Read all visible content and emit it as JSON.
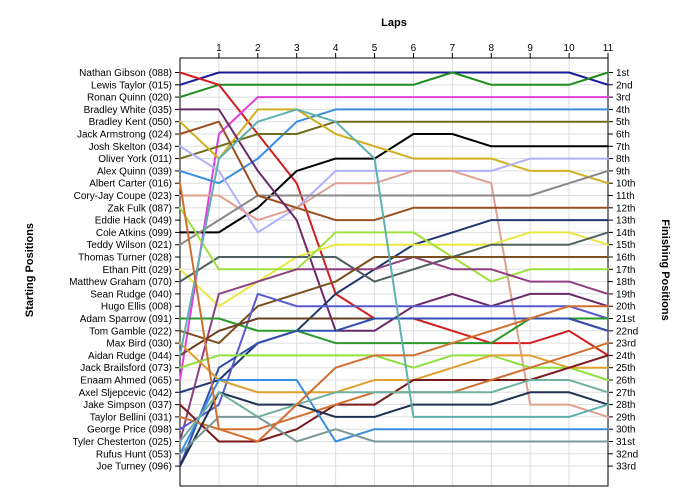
{
  "chart_data": {
    "type": "line",
    "title": "Laps",
    "xlabel": "Laps",
    "ylabel_left": "Starting Positions",
    "ylabel_right": "Finishing Positions",
    "x": [
      0,
      1,
      2,
      3,
      4,
      5,
      6,
      7,
      8,
      9,
      10,
      11
    ],
    "x_tick_labels": [
      "1",
      "2",
      "3",
      "4",
      "5",
      "6",
      "7",
      "8",
      "9",
      "10",
      "11"
    ],
    "ylim": [
      1,
      33
    ],
    "y_inverted": true,
    "grid": true,
    "drivers": [
      "Nathan Gibson (088)",
      "Lewis Taylor (015)",
      "Ronan Quinn (020)",
      "Bradley White (035)",
      "Bradley Kent (050)",
      "Jack Armstrong (024)",
      "Josh Skelton (034)",
      "Oliver York (011)",
      "Alex Quinn (039)",
      "Albert Carter (016)",
      "Cory-Jay Coupe (023)",
      "Zak Fulk (087)",
      "Eddie Hack (049)",
      "Cole Atkins (099)",
      "Teddy Wilson (021)",
      "Thomas Turner (028)",
      "Ethan Pitt (029)",
      "Matthew Graham (070)",
      "Sean Rudge (040)",
      "Hugo Ellis (008)",
      "Adam Sparrow (091)",
      "Tom Gamble (022)",
      "Max Bird (030)",
      "Aidan Rudge (044)",
      "Jack Brailsford (073)",
      "Enaam Ahmed (065)",
      "Axel Sljepcevic (042)",
      "Jake Simpson (037)",
      "Taylor Bellini (031)",
      "George Price (098)",
      "Tyler Chesterton (025)",
      "Rufus Hunt (053)",
      "Joe Turney (096)"
    ],
    "finishing_labels": [
      "1st",
      "2nd",
      "3rd",
      "4th",
      "5th",
      "6th",
      "7th",
      "8th",
      "9th",
      "10th",
      "11th",
      "12th",
      "13th",
      "14th",
      "15th",
      "16th",
      "17th",
      "18th",
      "19th",
      "20th",
      "21st",
      "22nd",
      "23rd",
      "24th",
      "25th",
      "26th",
      "27th",
      "28th",
      "29th",
      "30th",
      "31st",
      "32nd",
      "33rd"
    ],
    "series": [
      {
        "color": "#1a1a9a",
        "values": [
          2,
          1,
          1,
          1,
          1,
          1,
          1,
          1,
          1,
          1,
          1,
          2
        ]
      },
      {
        "color": "#1e8c1e",
        "values": [
          3,
          2,
          2,
          2,
          2,
          2,
          2,
          1,
          2,
          2,
          2,
          1
        ]
      },
      {
        "color": "#d21e1e",
        "values": [
          1,
          2,
          6,
          10,
          19,
          21,
          21,
          22,
          23,
          23,
          22,
          24
        ]
      },
      {
        "color": "#e040e0",
        "values": [
          26,
          6,
          3,
          3,
          3,
          3,
          3,
          3,
          3,
          3,
          3,
          3
        ]
      },
      {
        "color": "#3a8ee0",
        "values": [
          9,
          10,
          8,
          5,
          4,
          4,
          4,
          4,
          4,
          4,
          4,
          4
        ]
      },
      {
        "color": "#6e6e1e",
        "values": [
          8,
          7,
          6,
          6,
          5,
          5,
          5,
          5,
          5,
          5,
          5,
          5
        ]
      },
      {
        "color": "#000000",
        "values": [
          14,
          14,
          12,
          9,
          8,
          8,
          6,
          6,
          7,
          7,
          7,
          7
        ]
      },
      {
        "color": "#d0b020",
        "values": [
          5,
          8,
          4,
          4,
          6,
          7,
          8,
          8,
          8,
          9,
          9,
          10
        ]
      },
      {
        "color": "#b0b0ff",
        "values": [
          7,
          9,
          14,
          12,
          9,
          9,
          9,
          9,
          9,
          8,
          8,
          8
        ]
      },
      {
        "color": "#e0a090",
        "values": [
          11,
          11,
          13,
          12,
          10,
          10,
          9,
          9,
          10,
          28,
          28,
          29
        ]
      },
      {
        "color": "#888888",
        "values": [
          15,
          13,
          11,
          11,
          11,
          11,
          11,
          11,
          11,
          11,
          10,
          9
        ]
      },
      {
        "color": "#9a5020",
        "values": [
          6,
          5,
          11,
          12,
          13,
          13,
          12,
          12,
          12,
          12,
          12,
          12
        ]
      },
      {
        "color": "#6a2a6a",
        "values": [
          4,
          4,
          9,
          13,
          22,
          22,
          20,
          19,
          20,
          19,
          19,
          20
        ]
      },
      {
        "color": "#203870",
        "values": [
          27,
          26,
          23,
          22,
          19,
          17,
          15,
          14,
          13,
          13,
          13,
          13
        ]
      },
      {
        "color": "#e8e840",
        "values": [
          17,
          20,
          18,
          16,
          15,
          15,
          15,
          15,
          15,
          14,
          14,
          15
        ]
      },
      {
        "color": "#506060",
        "values": [
          18,
          16,
          16,
          16,
          16,
          18,
          17,
          16,
          15,
          15,
          15,
          14
        ]
      },
      {
        "color": "#a0e040",
        "values": [
          12,
          17,
          17,
          17,
          14,
          14,
          14,
          16,
          18,
          17,
          17,
          17
        ]
      },
      {
        "color": "#904080",
        "values": [
          31,
          19,
          18,
          17,
          17,
          17,
          16,
          17,
          17,
          18,
          18,
          19
        ]
      },
      {
        "color": "#7a5020",
        "values": [
          22,
          23,
          20,
          19,
          18,
          16,
          16,
          16,
          16,
          16,
          16,
          16
        ]
      },
      {
        "color": "#5a5ad0",
        "values": [
          30,
          28,
          19,
          20,
          20,
          20,
          20,
          20,
          20,
          20,
          20,
          21
        ]
      },
      {
        "color": "#2a9a2a",
        "values": [
          21,
          21,
          22,
          22,
          23,
          23,
          23,
          23,
          23,
          21,
          21,
          21
        ]
      },
      {
        "color": "#6a4020",
        "values": [
          24,
          22,
          21,
          21,
          21,
          21,
          21,
          21,
          21,
          21,
          21,
          22
        ]
      },
      {
        "color": "#3050b0",
        "values": [
          33,
          25,
          23,
          22,
          22,
          21,
          21,
          21,
          21,
          21,
          21,
          22
        ]
      },
      {
        "color": "#90e040",
        "values": [
          25,
          24,
          24,
          24,
          24,
          24,
          25,
          24,
          24,
          25,
          25,
          26
        ]
      },
      {
        "color": "#e0a030",
        "values": [
          23,
          26,
          27,
          27,
          27,
          26,
          26,
          25,
          24,
          24,
          25,
          25
        ]
      },
      {
        "color": "#7a1a1a",
        "values": [
          28,
          31,
          31,
          30,
          28,
          28,
          26,
          26,
          26,
          26,
          25,
          24
        ]
      },
      {
        "color": "#3a8ee0",
        "values": [
          32,
          26,
          26,
          26,
          31,
          30,
          30,
          30,
          30,
          30,
          30,
          30
        ]
      },
      {
        "color": "#d07030",
        "values": [
          29,
          30,
          30,
          29,
          28,
          27,
          27,
          27,
          26,
          25,
          24,
          23
        ]
      },
      {
        "color": "#203050",
        "values": [
          33,
          27,
          28,
          28,
          29,
          29,
          28,
          28,
          28,
          27,
          27,
          28
        ]
      },
      {
        "color": "#70b0a0",
        "values": [
          31,
          27,
          29,
          28,
          27,
          27,
          27,
          27,
          27,
          26,
          26,
          27
        ]
      },
      {
        "color": "#60b0b0",
        "values": [
          24,
          8,
          5,
          4,
          5,
          8,
          29,
          29,
          29,
          29,
          29,
          28
        ]
      },
      {
        "color": "#7a9a9a",
        "values": [
          32,
          29,
          29,
          31,
          30,
          31,
          31,
          31,
          31,
          31,
          31,
          31
        ]
      },
      {
        "color": "#d07030",
        "values": [
          10,
          30,
          31,
          28,
          25,
          24,
          24,
          23,
          22,
          21,
          20,
          20
        ]
      }
    ]
  }
}
